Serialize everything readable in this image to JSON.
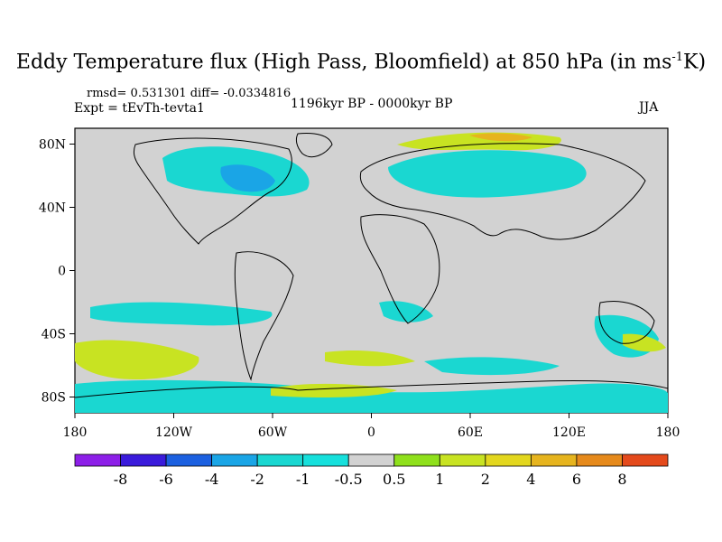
{
  "title": {
    "main": "Eddy Temperature flux (High Pass, Bloomfield) at 850 hPa (in ms",
    "sup": "-1",
    "tail": "K)"
  },
  "stats": "rmsd= 0.531301 diff= -0.0334816",
  "experiment": "Expt = tEvTh-tevta1",
  "period": "1196kyr BP - 0000kyr BP",
  "season": "JJA",
  "colors": {
    "c_m8": "#8d1fe8",
    "c_m6": "#3a1bdb",
    "c_m4": "#1c60e0",
    "c_m2": "#1aa5e6",
    "c_m1": "#1ad7d1",
    "c_m05": "#16e0dc",
    "c_0": "#d2d2d2",
    "c_05": "#8fe01c",
    "c_1": "#c8e322",
    "c_2": "#e3d71e",
    "c_4": "#e6b41e",
    "c_6": "#e68a1c",
    "c_8": "#e44a1c"
  },
  "chart_data": {
    "type": "heatmap",
    "projection": "cylindrical-equidistant",
    "xlim": [
      -180,
      180
    ],
    "ylim": [
      -90,
      90
    ],
    "x_ticks": [
      "180",
      "120W",
      "60W",
      "0",
      "60E",
      "120E",
      "180"
    ],
    "y_ticks": [
      "80N",
      "40N",
      "0",
      "40S",
      "80S"
    ],
    "colorbar": {
      "levels": [
        "-8",
        "-6",
        "-4",
        "-2",
        "-1",
        "-0.5",
        "0.5",
        "1",
        "2",
        "4",
        "6",
        "8"
      ]
    }
  }
}
